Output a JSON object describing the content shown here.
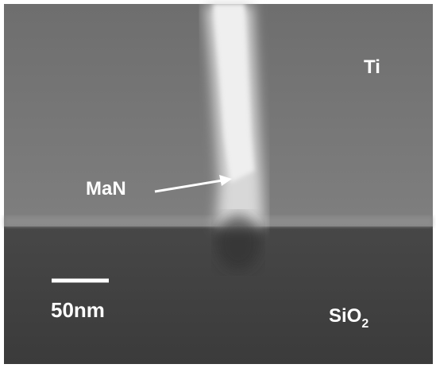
{
  "labels": {
    "top_layer": "Ti",
    "resist": "MaN",
    "scale_bar": "50nm",
    "substrate": {
      "text": "SiO",
      "subscript": "2"
    }
  }
}
